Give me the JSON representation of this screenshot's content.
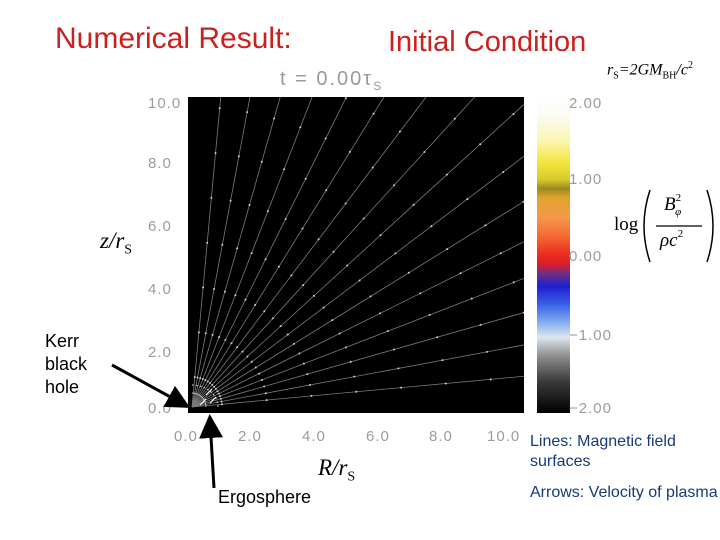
{
  "title": {
    "numerical_result": "Numerical Result:",
    "initial_condition": "Initial Condition",
    "time_label": "t = 0.00τ",
    "time_sub": "S"
  },
  "rs_def": {
    "text": "r",
    "sub": "S",
    "rest": "=2GM",
    "sub2": "BH",
    "rest2": "/c",
    "sup": "2"
  },
  "axes": {
    "y_label": "z/r",
    "y_sub": "S",
    "x_label": "R/r",
    "x_sub": "S",
    "y_ticks": [
      "10.0",
      "8.0",
      "6.0",
      "4.0",
      "2.0",
      "0.0"
    ],
    "x_ticks": [
      "0.0",
      "2.0",
      "4.0",
      "6.0",
      "8.0",
      "10.0"
    ]
  },
  "colorbar": {
    "ticks": [
      "2.00",
      "1.00",
      "0.00",
      "−1.00",
      "−2.00"
    ],
    "formula_log": "log",
    "formula_num": "B",
    "formula_num_sub": "φ",
    "formula_num_sup": "2",
    "formula_den": "ρc",
    "formula_den_sup": "2"
  },
  "annotations": {
    "kerr_line1": "Kerr",
    "kerr_line2": "black",
    "kerr_line3": "hole",
    "ergosphere": "Ergosphere"
  },
  "legend": {
    "lines": "Lines: Magnetic field surfaces",
    "arrows": "Arrows: Velocity of plasma"
  },
  "colors": {
    "title_red": "#cc1f1f",
    "legend_blue": "#153a7a",
    "tick_gray": "#9c9c9c"
  }
}
